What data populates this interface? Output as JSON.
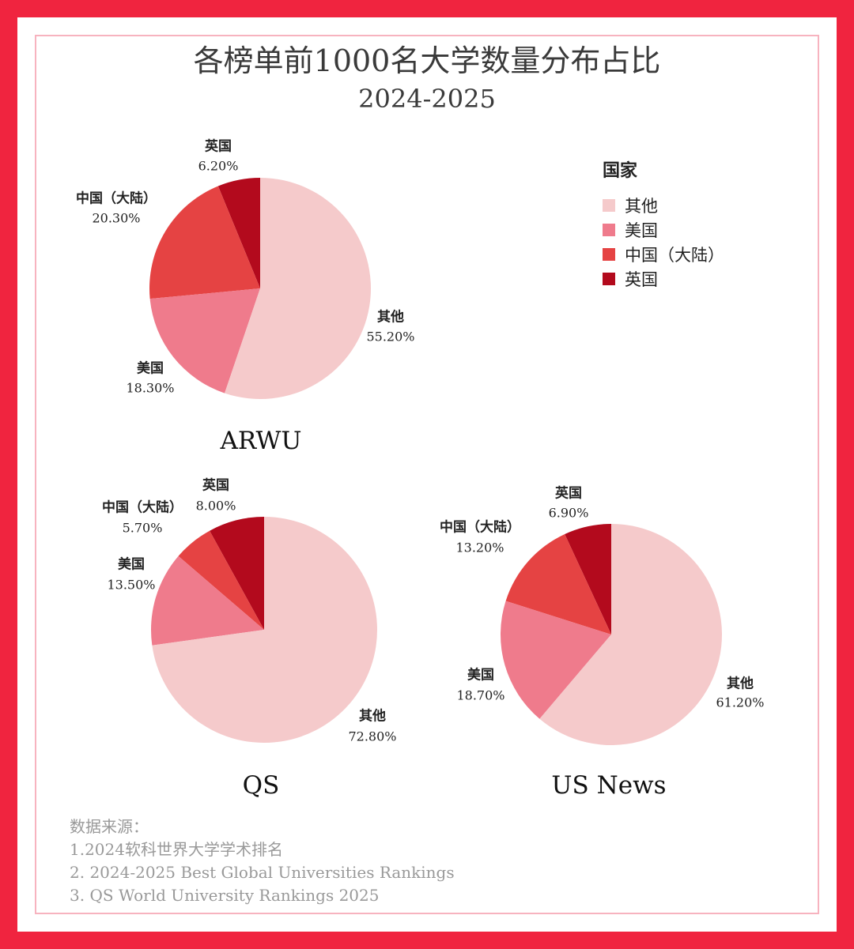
{
  "title": "各榜单前1000名大学数量分布占比",
  "subtitle": "2024-2025",
  "legend": {
    "title": "国家",
    "items": [
      {
        "label": "其他",
        "color": "#f5cacb"
      },
      {
        "label": "美国",
        "color": "#ef7b8c"
      },
      {
        "label": "中国（大陆）",
        "color": "#e54343"
      },
      {
        "label": "英国",
        "color": "#b30a1d"
      }
    ]
  },
  "chart_data": [
    {
      "type": "pie",
      "title": "ARWU",
      "categories": [
        "英国",
        "中国（大陆）",
        "美国",
        "其他"
      ],
      "values": [
        6.2,
        20.3,
        18.3,
        55.2
      ],
      "labels": [
        "6.20%",
        "20.30%",
        "18.30%",
        "55.20%"
      ]
    },
    {
      "type": "pie",
      "title": "QS",
      "categories": [
        "英国",
        "中国（大陆）",
        "美国",
        "其他"
      ],
      "values": [
        8.0,
        5.7,
        13.5,
        72.8
      ],
      "labels": [
        "8.00%",
        "5.70%",
        "13.50%",
        "72.80%"
      ]
    },
    {
      "type": "pie",
      "title": "US News",
      "categories": [
        "英国",
        "中国（大陆）",
        "美国",
        "其他"
      ],
      "values": [
        6.9,
        13.2,
        18.7,
        61.2
      ],
      "labels": [
        "6.90%",
        "13.20%",
        "18.70%",
        "61.20%"
      ]
    }
  ],
  "sources": {
    "heading": "数据来源：",
    "lines": [
      "1.2024软科世界大学学术排名",
      "2. 2024-2025 Best Global Universities Rankings",
      "3. QS World University Rankings 2025"
    ]
  }
}
